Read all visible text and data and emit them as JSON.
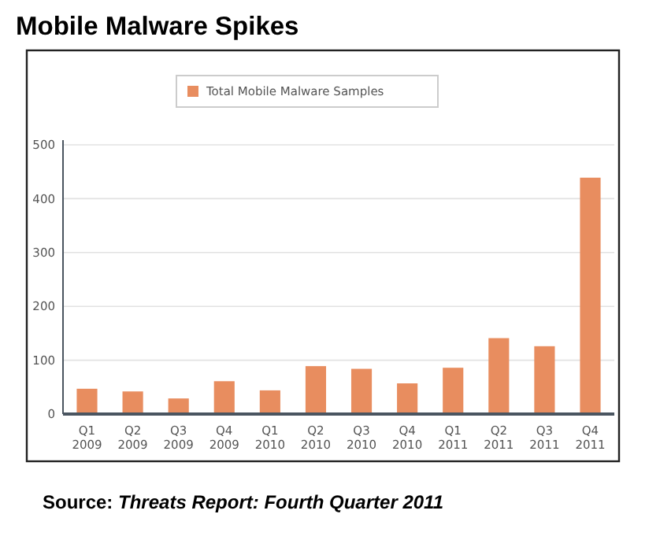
{
  "chart_data": {
    "type": "bar",
    "title": "Mobile Malware Spikes",
    "categories": [
      "Q1\n2009",
      "Q2\n2009",
      "Q3\n2009",
      "Q4\n2009",
      "Q1\n2010",
      "Q2\n2010",
      "Q3\n2010",
      "Q4\n2010",
      "Q1\n2011",
      "Q2\n2011",
      "Q3\n2011",
      "Q4\n2011"
    ],
    "series": [
      {
        "name": "Total Mobile Malware Samples",
        "color": "#e88d5f",
        "values": [
          47,
          42,
          29,
          61,
          44,
          89,
          84,
          57,
          86,
          141,
          126,
          439
        ]
      }
    ],
    "ylim": [
      0,
      500
    ],
    "yticks": [
      0,
      100,
      200,
      300,
      400,
      500
    ],
    "grid": "y",
    "legend": "top",
    "annotations": [
      "Source: Threats Report: Fourth Quarter 2011"
    ]
  }
}
